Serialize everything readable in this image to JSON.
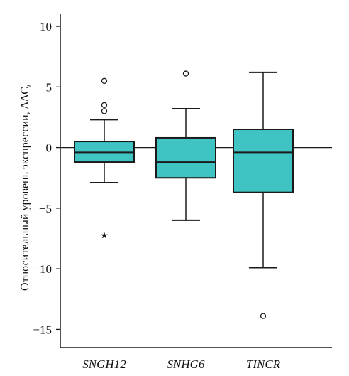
{
  "chart_data": {
    "type": "box",
    "ylabel": "Относительный уровень экспрессии, ΔΔC",
    "ylabel_sub": "t",
    "ylim": [
      -16.5,
      11
    ],
    "yticks": [
      10,
      5,
      0,
      -5,
      -10,
      -15
    ],
    "ytick_labels": [
      "10",
      "5",
      "0",
      "−5",
      "−10",
      "−15"
    ],
    "reference_line": 0,
    "grid": false,
    "categories": [
      "SNGH12",
      "SNHG6",
      "TINCR"
    ],
    "boxes": [
      {
        "name": "SNGH12",
        "whisker_low": -2.9,
        "q1": -1.2,
        "median": -0.4,
        "q3": 0.5,
        "whisker_high": 2.3,
        "outliers": [
          5.5,
          3.5,
          3.0
        ],
        "extremes": [
          -7.2
        ]
      },
      {
        "name": "SNHG6",
        "whisker_low": -6.0,
        "q1": -2.5,
        "median": -1.2,
        "q3": 0.8,
        "whisker_high": 3.2,
        "outliers": [
          6.1
        ],
        "extremes": []
      },
      {
        "name": "TINCR",
        "whisker_low": -9.9,
        "q1": -3.7,
        "median": -0.4,
        "q3": 1.5,
        "whisker_high": 6.2,
        "outliers": [
          -13.9
        ],
        "extremes": []
      }
    ],
    "colors": {
      "box_fill": "#3fc3c3",
      "stroke": "#1a1a1a"
    }
  }
}
